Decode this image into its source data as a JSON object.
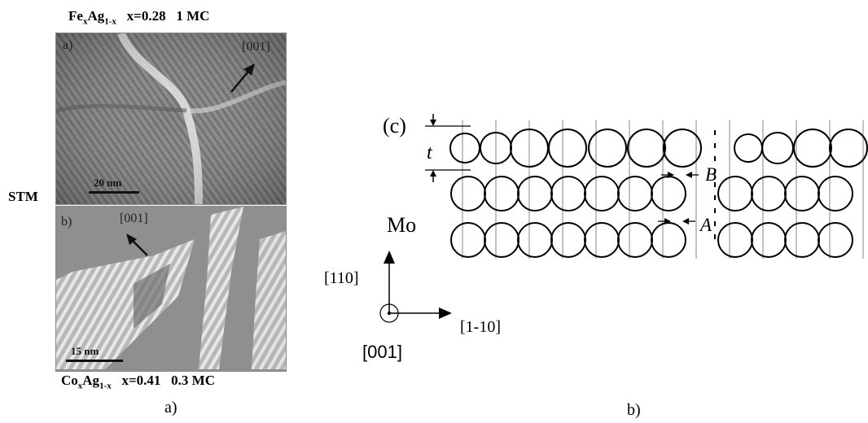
{
  "figure_a": {
    "top_title": {
      "elem_main": "Fe",
      "sub1": "x",
      "elem2": "Ag",
      "sub2": "1-x",
      "x": "x=0.28",
      "coverage": "1 MC"
    },
    "side_label": "STM",
    "panel1": {
      "letter": "a)",
      "direction": "[001]",
      "scale": "20 nm"
    },
    "panel2": {
      "letter": "b)",
      "direction": "[001]",
      "scale": "15 nm"
    },
    "bottom_title": {
      "elem_main": "Co",
      "sub1": "x",
      "elem2": "Ag",
      "sub2": "1-x",
      "x": "x=0.41",
      "coverage": "0.3 MC"
    },
    "caption": "a)"
  },
  "figure_b": {
    "panel_letter": "(c)",
    "thickness": "t",
    "label_B": "B",
    "label_A": "A",
    "substrate": "Mo",
    "axis_up": "[110]",
    "axis_right": "[1-10]",
    "axis_out": "[001]",
    "caption": "b)"
  }
}
